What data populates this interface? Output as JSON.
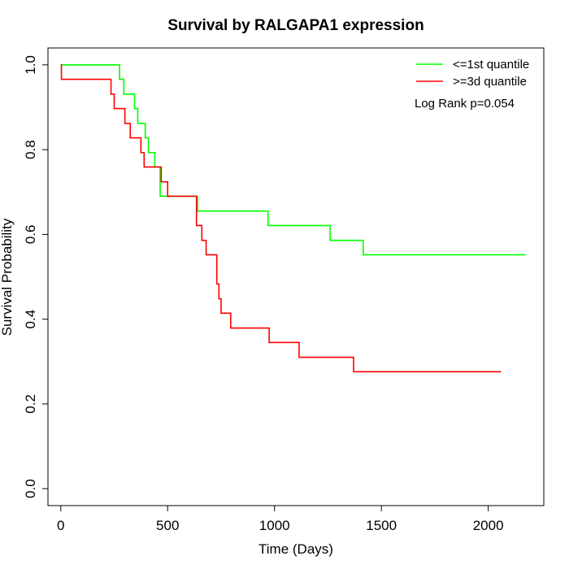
{
  "chart_data": {
    "type": "line",
    "title": "Survival by RALGAPA1 expression",
    "xlabel": "Time (Days)",
    "ylabel": "Survival Probability",
    "xlim": [
      -60,
      2260
    ],
    "ylim": [
      -0.04,
      1.04
    ],
    "xticks": [
      0,
      500,
      1000,
      1500,
      2000
    ],
    "yticks": [
      0.0,
      0.2,
      0.4,
      0.6,
      0.8,
      1.0
    ],
    "xtick_labels": [
      "0",
      "500",
      "1000",
      "1500",
      "2000"
    ],
    "ytick_labels": [
      "0.0",
      "0.2",
      "0.4",
      "0.6",
      "0.8",
      "1.0"
    ],
    "grid": false,
    "legend_position": "top-right",
    "annotation": "Log Rank p=0.054",
    "series": [
      {
        "name": "<=1st quantile",
        "color": "#00ff00",
        "step": true,
        "x": [
          0,
          275,
          295,
          345,
          360,
          395,
          410,
          440,
          465,
          640,
          970,
          1260,
          1415,
          2175
        ],
        "y": [
          1.0,
          0.966,
          0.931,
          0.897,
          0.862,
          0.828,
          0.793,
          0.759,
          0.69,
          0.655,
          0.621,
          0.586,
          0.552,
          0.552
        ]
      },
      {
        "name": ">=3d quantile",
        "color": "#ff0000",
        "step": true,
        "x": [
          0,
          3,
          235,
          250,
          300,
          325,
          375,
          390,
          470,
          500,
          635,
          660,
          680,
          730,
          740,
          750,
          795,
          975,
          1115,
          1370,
          2060
        ],
        "y": [
          1.0,
          0.966,
          0.931,
          0.897,
          0.862,
          0.828,
          0.793,
          0.759,
          0.724,
          0.69,
          0.621,
          0.586,
          0.552,
          0.483,
          0.448,
          0.414,
          0.379,
          0.345,
          0.31,
          0.276,
          0.276
        ]
      }
    ]
  }
}
